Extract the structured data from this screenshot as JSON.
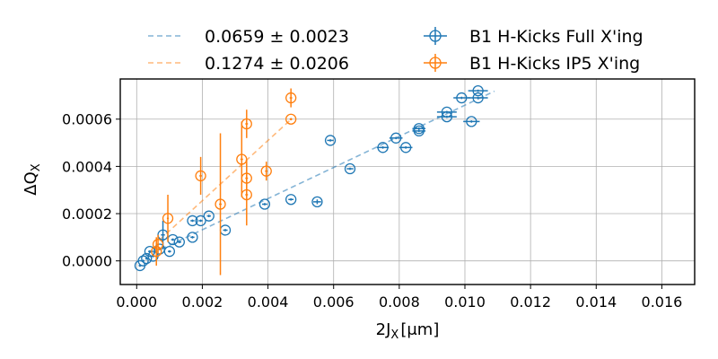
{
  "chart_data": {
    "type": "scatter",
    "xlabel_main": "2J",
    "xlabel_sub": "X",
    "xlabel_unit": "[μm]",
    "ylabel_main": "ΔQ",
    "ylabel_sub": "X",
    "xlim": [
      -0.0005,
      0.017
    ],
    "ylim": [
      -0.0001,
      0.00077
    ],
    "xticks": [
      0.0,
      0.002,
      0.004,
      0.006,
      0.008,
      0.01,
      0.012,
      0.014,
      0.016
    ],
    "xtick_labels": [
      "0.000",
      "0.002",
      "0.004",
      "0.006",
      "0.008",
      "0.010",
      "0.012",
      "0.014",
      "0.016"
    ],
    "yticks": [
      0.0,
      0.0002,
      0.0004,
      0.0006
    ],
    "ytick_labels": [
      "0.0000",
      "0.0002",
      "0.0004",
      "0.0006"
    ],
    "grid": true,
    "legend_position": "above plot",
    "series": [
      {
        "name": "B1 H-Kicks Full X'ing",
        "color": "#1f77b4",
        "points": [
          {
            "x": 0.0001,
            "y": -2e-05,
            "xerr": 4e-05,
            "yerr": 5e-06
          },
          {
            "x": 0.0002,
            "y": 0.0,
            "xerr": 4e-05,
            "yerr": 5e-06
          },
          {
            "x": 0.0003,
            "y": 1e-05,
            "xerr": 4e-05,
            "yerr": 5e-06
          },
          {
            "x": 0.0004,
            "y": 4e-05,
            "xerr": 5e-05,
            "yerr": 5e-06
          },
          {
            "x": 0.0005,
            "y": 2e-05,
            "xerr": 5e-05,
            "yerr": 5e-06
          },
          {
            "x": 0.0007,
            "y": 5e-05,
            "xerr": 5e-05,
            "yerr": 5e-06
          },
          {
            "x": 0.0008,
            "y": 0.00011,
            "xerr": 6e-05,
            "yerr": 6e-05
          },
          {
            "x": 0.001,
            "y": 4e-05,
            "xerr": 5e-05,
            "yerr": 5e-06
          },
          {
            "x": 0.0011,
            "y": 9e-05,
            "xerr": 5e-05,
            "yerr": 5e-06
          },
          {
            "x": 0.0013,
            "y": 8e-05,
            "xerr": 6e-05,
            "yerr": 5e-06
          },
          {
            "x": 0.0017,
            "y": 0.00017,
            "xerr": 6e-05,
            "yerr": 5e-06
          },
          {
            "x": 0.0017,
            "y": 0.0001,
            "xerr": 6e-05,
            "yerr": 5e-06
          },
          {
            "x": 0.00195,
            "y": 0.00017,
            "xerr": 6e-05,
            "yerr": 5e-06
          },
          {
            "x": 0.0022,
            "y": 0.00019,
            "xerr": 6e-05,
            "yerr": 5e-06
          },
          {
            "x": 0.0027,
            "y": 0.00013,
            "xerr": 7e-05,
            "yerr": 5e-06
          },
          {
            "x": 0.0039,
            "y": 0.00024,
            "xerr": 8e-05,
            "yerr": 5e-06
          },
          {
            "x": 0.0047,
            "y": 0.00026,
            "xerr": 8e-05,
            "yerr": 5e-06
          },
          {
            "x": 0.0055,
            "y": 0.00025,
            "xerr": 0.00012,
            "yerr": 1e-05
          },
          {
            "x": 0.0059,
            "y": 0.00051,
            "xerr": 0.0001,
            "yerr": 5e-06
          },
          {
            "x": 0.0065,
            "y": 0.00039,
            "xerr": 0.0001,
            "yerr": 5e-06
          },
          {
            "x": 0.0075,
            "y": 0.00048,
            "xerr": 0.00018,
            "yerr": 5e-06
          },
          {
            "x": 0.0079,
            "y": 0.00052,
            "xerr": 0.0002,
            "yerr": 5e-06
          },
          {
            "x": 0.0082,
            "y": 0.00048,
            "xerr": 0.0002,
            "yerr": 5e-06
          },
          {
            "x": 0.0086,
            "y": 0.00055,
            "xerr": 0.0002,
            "yerr": 5e-06
          },
          {
            "x": 0.0086,
            "y": 0.00056,
            "xerr": 0.0002,
            "yerr": 5e-06
          },
          {
            "x": 0.00945,
            "y": 0.00063,
            "xerr": 0.0003,
            "yerr": 5e-06
          },
          {
            "x": 0.00945,
            "y": 0.00061,
            "xerr": 0.0003,
            "yerr": 5e-06
          },
          {
            "x": 0.0099,
            "y": 0.00069,
            "xerr": 0.00025,
            "yerr": 5e-06
          },
          {
            "x": 0.0102,
            "y": 0.00059,
            "xerr": 0.00025,
            "yerr": 5e-06
          },
          {
            "x": 0.0104,
            "y": 0.00072,
            "xerr": 0.0003,
            "yerr": 5e-06
          },
          {
            "x": 0.0104,
            "y": 0.00069,
            "xerr": 0.0003,
            "yerr": 5e-06
          }
        ]
      },
      {
        "name": "B1 H-Kicks IP5 X'ing",
        "color": "#ff7f0e",
        "points": [
          {
            "x": 0.0006,
            "y": 4e-05,
            "xerr": 3e-05,
            "yerr": 6e-05
          },
          {
            "x": 0.00065,
            "y": 7e-05,
            "xerr": 3e-05,
            "yerr": 4e-05
          },
          {
            "x": 0.00095,
            "y": 0.00018,
            "xerr": 3e-05,
            "yerr": 0.0001
          },
          {
            "x": 0.00195,
            "y": 0.00036,
            "xerr": 4e-05,
            "yerr": 8e-05
          },
          {
            "x": 0.00255,
            "y": 0.00024,
            "xerr": 4e-05,
            "yerr": 0.0003
          },
          {
            "x": 0.0032,
            "y": 0.00043,
            "xerr": 4e-05,
            "yerr": 0.00016
          },
          {
            "x": 0.00335,
            "y": 0.00058,
            "xerr": 4e-05,
            "yerr": 6e-05
          },
          {
            "x": 0.00335,
            "y": 0.00035,
            "xerr": 4e-05,
            "yerr": 8e-05
          },
          {
            "x": 0.00335,
            "y": 0.00028,
            "xerr": 4e-05,
            "yerr": 0.00013
          },
          {
            "x": 0.00395,
            "y": 0.00038,
            "xerr": 4e-05,
            "yerr": 4e-05
          },
          {
            "x": 0.0047,
            "y": 0.00069,
            "xerr": 4e-05,
            "yerr": 4e-05
          },
          {
            "x": 0.0047,
            "y": 0.0006,
            "xerr": 4e-05,
            "yerr": 5e-06
          }
        ]
      }
    ],
    "fits": [
      {
        "label": "0.0659 ± 0.0023",
        "color": "#1f77b4",
        "slope": 0.0659,
        "intercept": 0.0,
        "x_range": [
          0.0005,
          0.0109
        ]
      },
      {
        "label": "0.1274 ± 0.0206",
        "color": "#ff7f0e",
        "slope": 0.1274,
        "intercept": 0.0,
        "x_range": [
          0.0007,
          0.0047
        ]
      }
    ]
  }
}
